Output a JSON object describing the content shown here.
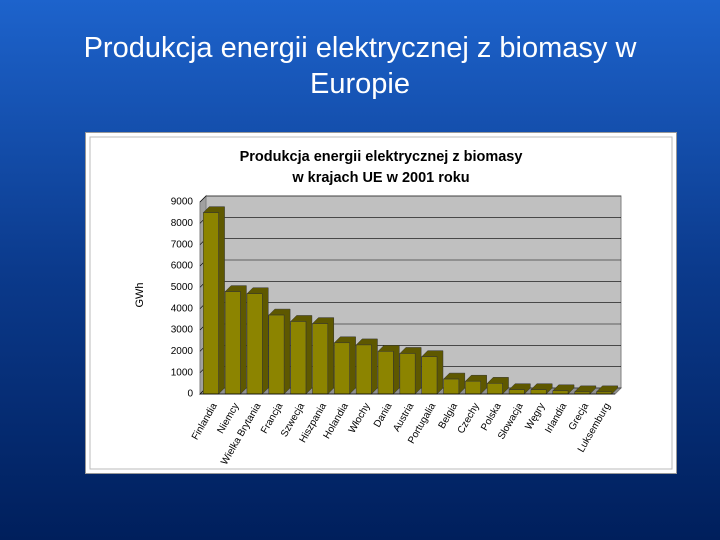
{
  "slide_title": "Produkcja energii elektrycznej z biomasy w Europie",
  "chart_data": {
    "type": "bar",
    "title_lines": [
      "Produkcja energii elektrycznej z biomasy",
      "w krajach UE w 2001 roku"
    ],
    "y_label": "GWh",
    "categories": [
      "Finlandia",
      "Niemcy",
      "Wielka Brytania",
      "Francja",
      "Szwecja",
      "Hiszpania",
      "Holandia",
      "Włochy",
      "Dania",
      "Austria",
      "Portugalia",
      "Belgia",
      "Czechy",
      "Polska",
      "Słowacja",
      "Węgry",
      "Irlandia",
      "Grecja",
      "Luksemburg"
    ],
    "values": [
      8500,
      4800,
      4700,
      3700,
      3400,
      3300,
      2400,
      2300,
      2000,
      1900,
      1750,
      700,
      600,
      500,
      200,
      200,
      150,
      100,
      100
    ],
    "color": "#8c8400",
    "ylim": [
      0,
      9000
    ],
    "yticks": [
      0,
      1000,
      2000,
      3000,
      4000,
      5000,
      6000,
      7000,
      8000,
      9000
    ],
    "grid": true
  }
}
